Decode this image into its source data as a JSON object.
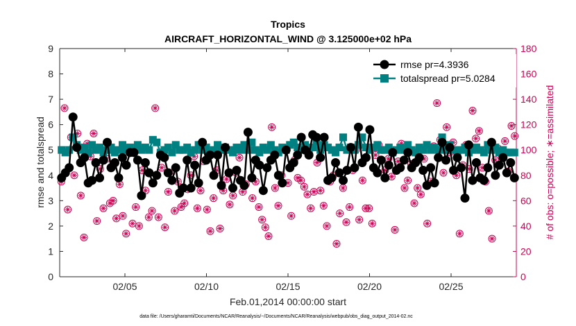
{
  "chart_data": {
    "type": "line",
    "title": "Tropics",
    "subtitle": "AIRCRAFT_HORIZONTAL_WIND @ 3.125000e+02 hPa",
    "xlabel": "Feb.01,2014 00:00:00 start",
    "ylabel": "rmse and totalspread",
    "y2label": "# of obs: o=possible; ∗=assimilated",
    "footnote": "data file: /Users/gharamti/Documents/NCAR/Reanalysis/~/Documents/NCAR/Reanalysis/webpub/obs_diag_output_2014-02.nc",
    "xlim": [
      1,
      29
    ],
    "ylim": [
      0,
      9
    ],
    "y2lim": [
      0,
      180
    ],
    "xticks": [
      5,
      10,
      15,
      20,
      25
    ],
    "xtick_labels": [
      "02/05",
      "02/10",
      "02/15",
      "02/20",
      "02/25"
    ],
    "yticks": [
      "0",
      "1",
      "2",
      "3",
      "4",
      "5",
      "6",
      "7",
      "8",
      "9"
    ],
    "y2ticks": [
      "0",
      "20",
      "40",
      "60",
      "80",
      "100",
      "120",
      "140",
      "160",
      "180"
    ],
    "legend_position": "top-right",
    "colors": {
      "rmse": "#000000",
      "spread": "#008080",
      "obs": "#cc0052",
      "axis": "#262626"
    },
    "series": [
      {
        "name": "rmse pr=4.3936",
        "axis": "left",
        "values": [
          3.9,
          4.1,
          4.3,
          6.3,
          5.1,
          4.5,
          4.7,
          3.7,
          3.8,
          4.5,
          3.9,
          4.6,
          5.3,
          4.3,
          4.5,
          3.9,
          4.7,
          4.4,
          4.9,
          4.9,
          4.6,
          3.2,
          4.5,
          4.1,
          3.7,
          4.0,
          4.8,
          4.7,
          4.1,
          3.8,
          4.3,
          3.3,
          3.5,
          4.6,
          3.5,
          4.4,
          3.7,
          5.3,
          4.6,
          4.8,
          4.0,
          4.8,
          3.6,
          5.1,
          4.1,
          3.5,
          4.2,
          3.8,
          3.6,
          5.7,
          3.9,
          4.6,
          4.4,
          3.4,
          4.3,
          4.6,
          4.8,
          4.0,
          3.7,
          5.0,
          4.3,
          4.5,
          4.8,
          5.5,
          5.0,
          4.8,
          5.6,
          5.5,
          4.7,
          5.5,
          3.8,
          3.9,
          4.5,
          4.1,
          3.8,
          4.2,
          5.1,
          4.3,
          5.9,
          4.5,
          4.7,
          5.8,
          4.3,
          4.1,
          4.6,
          3.9,
          4.4,
          4.9,
          4.2,
          4.3,
          4.6,
          4.9,
          4.3,
          4.5,
          4.7,
          4.2,
          3.6,
          4.3,
          3.7,
          4.7,
          5.3,
          4.6,
          5.1,
          4.2,
          4.7,
          4.3,
          3.1,
          5.2,
          3.8,
          4.5,
          3.9,
          3.8,
          4.3,
          5.3,
          4.0,
          4.4,
          4.7,
          4.1,
          4.5,
          3.9
        ]
      },
      {
        "name": "totalspread pr=5.0284",
        "axis": "left",
        "values": [
          5.0,
          4.9,
          5.0,
          5.5,
          5.2,
          5.0,
          5.1,
          4.9,
          5.2,
          5.0,
          5.1,
          4.9,
          5.0,
          5.1,
          4.9,
          5.0,
          5.2,
          5.0,
          5.1,
          4.9,
          5.2,
          5.0,
          5.1,
          5.0,
          5.4,
          5.3,
          4.9,
          5.0,
          5.1,
          4.9,
          5.2,
          5.0,
          5.0,
          5.1,
          4.9,
          5.0,
          5.2,
          5.0,
          5.1,
          4.9,
          5.0,
          5.2,
          5.0,
          5.1,
          5.0,
          4.9,
          5.1,
          5.0,
          5.2,
          5.0,
          5.3,
          5.0,
          4.9,
          5.1,
          5.0,
          5.2,
          5.0,
          4.9,
          5.1,
          5.0,
          5.2,
          5.3,
          5.1,
          5.0,
          5.2,
          4.9,
          5.1,
          5.3,
          5.0,
          5.2,
          5.1,
          5.0,
          4.9,
          5.1,
          5.5,
          5.0,
          5.1,
          5.0,
          5.2,
          5.5,
          5.1,
          5.0,
          5.1,
          5.2,
          5.0,
          5.0,
          5.1,
          4.9,
          5.0,
          5.1,
          5.0,
          5.2,
          5.0,
          4.9,
          5.1,
          5.0,
          5.2,
          5.0,
          5.1,
          5.0,
          5.5,
          5.0,
          5.2,
          5.0,
          4.9,
          5.0,
          5.1,
          4.9,
          5.0,
          5.1,
          5.0,
          4.9,
          5.2,
          5.0,
          5.1,
          4.9,
          5.0,
          4.9,
          4.9,
          4.9
        ]
      },
      {
        "name": "obs possible",
        "axis": "right",
        "values": [
          75,
          133,
          53,
          110,
          80,
          113,
          64,
          31,
          105,
          95,
          113,
          44,
          85,
          54,
          93,
          58,
          60,
          46,
          73,
          48,
          34,
          100,
          42,
          55,
          40,
          84,
          68,
          47,
          52,
          133,
          47,
          86,
          39,
          67,
          82,
          52,
          75,
          55,
          58,
          69,
          80,
          95,
          54,
          68,
          91,
          53,
          36,
          62,
          84,
          38,
          68,
          77,
          57,
          64,
          82,
          94,
          67,
          73,
          100,
          62,
          75,
          55,
          45,
          39,
          32,
          118,
          70,
          56,
          80,
          100,
          74,
          48,
          92,
          78,
          76,
          71,
          65,
          54,
          67,
          90,
          68,
          56,
          40,
          75,
          80,
          26,
          50,
          70,
          43,
          55,
          84,
          100,
          45,
          76,
          54,
          54,
          42,
          96,
          104,
          100,
          84,
          93,
          79,
          37,
          91,
          105,
          70,
          76,
          89,
          58,
          70,
          65,
          93,
          42,
          75,
          103,
          137,
          108,
          82,
          118,
          98,
          106,
          80,
          34,
          88,
          104,
          85,
          131,
          109,
          115,
          86,
          75,
          52,
          30,
          92,
          101,
          96,
          107,
          83,
          119,
          111
        ]
      },
      {
        "name": "obs assimilated",
        "axis": "right",
        "values": [
          75,
          133,
          53,
          110,
          80,
          113,
          64,
          31,
          105,
          95,
          113,
          44,
          85,
          54,
          93,
          58,
          60,
          46,
          73,
          48,
          34,
          100,
          42,
          55,
          40,
          84,
          68,
          47,
          52,
          133,
          47,
          86,
          39,
          67,
          82,
          52,
          75,
          55,
          58,
          69,
          80,
          95,
          54,
          68,
          91,
          53,
          36,
          62,
          84,
          38,
          68,
          77,
          57,
          64,
          82,
          94,
          67,
          73,
          100,
          62,
          75,
          55,
          45,
          39,
          32,
          118,
          70,
          56,
          80,
          100,
          74,
          48,
          92,
          78,
          76,
          71,
          65,
          54,
          67,
          90,
          68,
          56,
          40,
          75,
          80,
          26,
          50,
          70,
          43,
          55,
          84,
          100,
          45,
          76,
          54,
          54,
          42,
          96,
          104,
          100,
          84,
          93,
          79,
          37,
          91,
          105,
          70,
          76,
          89,
          58,
          70,
          65,
          93,
          42,
          75,
          103,
          137,
          108,
          82,
          118,
          98,
          106,
          80,
          34,
          88,
          104,
          85,
          131,
          109,
          115,
          86,
          75,
          52,
          30,
          92,
          101,
          96,
          107,
          83,
          119,
          111
        ]
      }
    ]
  }
}
